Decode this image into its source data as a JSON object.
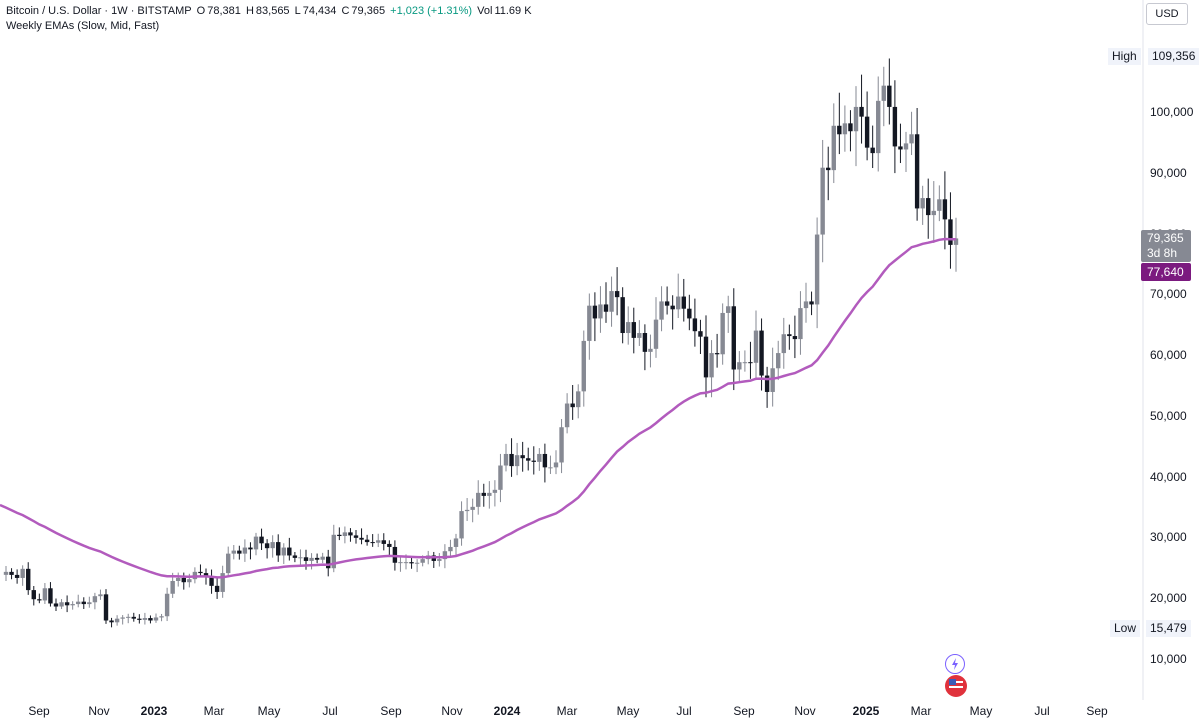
{
  "header": {
    "symbol": "Bitcoin / U.S. Dollar · 1W · BITSTAMP",
    "o_label": "O",
    "o_value": "78,381",
    "h_label": "H",
    "h_value": "83,565",
    "l_label": "L",
    "l_value": "74,434",
    "c_label": "C",
    "c_value": "79,365",
    "change": "+1,023 (+1.31%)",
    "vol_label": "Vol",
    "vol_value": "11.69 K",
    "indicator": "Weekly EMAs (Slow, Mid, Fast)"
  },
  "currency_button": "USD",
  "price_axis": {
    "ticks": [
      "100,000",
      "90,000",
      "80,000",
      "70,000",
      "60,000",
      "50,000",
      "40,000",
      "30,000",
      "20,000",
      "10,000"
    ],
    "high_label": "High",
    "high_value": "109,356",
    "low_label": "Low",
    "low_value": "15,479",
    "last_price": "79,365",
    "countdown": "3d 8h",
    "ema_value": "77,640"
  },
  "time_axis": {
    "ticks": [
      {
        "label": "Sep",
        "bold": false
      },
      {
        "label": "Nov",
        "bold": false
      },
      {
        "label": "2023",
        "bold": true
      },
      {
        "label": "Mar",
        "bold": false
      },
      {
        "label": "May",
        "bold": false
      },
      {
        "label": "Jul",
        "bold": false
      },
      {
        "label": "Sep",
        "bold": false
      },
      {
        "label": "Nov",
        "bold": false
      },
      {
        "label": "2024",
        "bold": true
      },
      {
        "label": "Mar",
        "bold": false
      },
      {
        "label": "May",
        "bold": false
      },
      {
        "label": "Jul",
        "bold": false
      },
      {
        "label": "Sep",
        "bold": false
      },
      {
        "label": "Nov",
        "bold": false
      },
      {
        "label": "2025",
        "bold": true
      },
      {
        "label": "Mar",
        "bold": false
      },
      {
        "label": "May",
        "bold": false
      },
      {
        "label": "Jul",
        "bold": false
      },
      {
        "label": "Sep",
        "bold": false
      }
    ]
  },
  "colors": {
    "up": "#868993",
    "down": "#131722",
    "ema": "#b25bbd",
    "ema_tag": "#7b1a7f",
    "last_tag": "#868993"
  },
  "chart_data": {
    "type": "candlestick",
    "title": "",
    "interval": "1W",
    "x_start": "2022-08-01",
    "ylim": [
      8000,
      111000
    ],
    "grid": false,
    "weekly_candles_close": [
      24500,
      24000,
      23500,
      25000,
      21500,
      20000,
      19800,
      21800,
      19300,
      18800,
      19500,
      19000,
      19200,
      19600,
      19200,
      19500,
      20500,
      20800,
      16500,
      16200,
      16800,
      17000,
      17100,
      16800,
      16600,
      16900,
      16500,
      17000,
      17200,
      20900,
      23000,
      23500,
      22800,
      23300,
      24500,
      24300,
      23600,
      22200,
      21200,
      24300,
      27500,
      28000,
      27500,
      28500,
      28200,
      30300,
      29200,
      28400,
      29400,
      27200,
      28500,
      27200,
      26800,
      26900,
      26300,
      26800,
      26500,
      27000,
      25100,
      30600,
      30400,
      31000,
      30500,
      30100,
      29800,
      29400,
      29300,
      29700,
      29100,
      28600,
      26000,
      26100,
      26100,
      25900,
      26000,
      26600,
      27200,
      26300,
      26600,
      27900,
      28600,
      30000,
      34500,
      34700,
      35200,
      37500,
      37000,
      37500,
      38000,
      42000,
      43900,
      41900,
      43700,
      43200,
      42800,
      42600,
      43900,
      41700,
      41700,
      42500,
      48300,
      52200,
      51600,
      54200,
      62500,
      68300,
      66200,
      68500,
      67300,
      70700,
      69700,
      63800,
      65600,
      63000,
      63800,
      60700,
      61200,
      66000,
      69000,
      68300,
      67700,
      69800,
      67800,
      66200,
      64100,
      63200,
      56500,
      60500,
      60300,
      67100,
      68200,
      57800,
      59000,
      59000,
      58900,
      64200,
      56800,
      54100,
      58000,
      60500,
      63600,
      63300,
      62800,
      67900,
      69000,
      68500,
      80000,
      91000,
      90600,
      97900,
      96500,
      98300,
      97000,
      101000,
      99400,
      94300,
      93400,
      102000,
      104500,
      101000,
      94500,
      94000,
      95000,
      96500,
      84300,
      86000,
      83200,
      83900,
      85800,
      82500,
      78300,
      79365
    ],
    "ema_last": 77640,
    "annotations": [
      "High 109,356",
      "Low 15,479"
    ]
  }
}
